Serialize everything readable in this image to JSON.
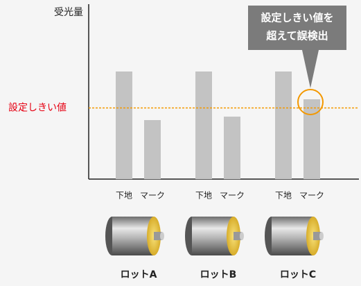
{
  "chart_data": {
    "type": "bar",
    "y_label": "受光量",
    "categories": [
      "ロットA",
      "ロットB",
      "ロットC"
    ],
    "series": [
      {
        "name": "下地",
        "color": "#c3c3c3",
        "values": [
          62,
          62,
          62
        ]
      },
      {
        "name": "マーク",
        "color": "#c3c3c3",
        "values": [
          34,
          36,
          46
        ]
      }
    ],
    "ylim": [
      0,
      100
    ],
    "threshold": {
      "value": 41,
      "label": "設定しきい値",
      "color": "#f39800",
      "label_color": "#e60012"
    },
    "callout": {
      "lines": [
        "設定しきい値を",
        "超えて誤検出"
      ],
      "color": "#7b7b7b",
      "target_group": 2,
      "target_series": 1
    }
  }
}
